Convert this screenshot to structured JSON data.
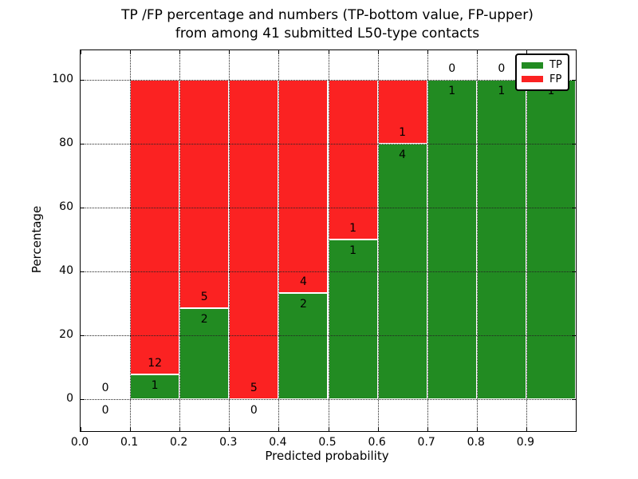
{
  "title": {
    "line1": "TP /FP percentage and numbers (TP-bottom value, FP-upper)",
    "line2": "from among 41 submitted L50-type contacts"
  },
  "chart_data": {
    "type": "bar",
    "stacked": true,
    "title": "TP /FP percentage and numbers (TP-bottom value, FP-upper)\nfrom among 41 submitted L50-type contacts",
    "xlabel": "Predicted probability",
    "ylabel": "Percentage",
    "xtick_labels": [
      "0.0",
      "0.1",
      "0.2",
      "0.3",
      "0.4",
      "0.5",
      "0.6",
      "0.7",
      "0.8",
      "0.9"
    ],
    "ytick_values": [
      0,
      20,
      40,
      60,
      80,
      100
    ],
    "ytick_labels": [
      "0",
      "20",
      "40",
      "60",
      "80",
      "100"
    ],
    "xlim": [
      0.0,
      1.0
    ],
    "ylim": [
      -10,
      109
    ],
    "grid": {
      "visible": true,
      "style": "dotted",
      "on_top": true
    },
    "legend": {
      "position": "upper right",
      "items": [
        {
          "label": "TP",
          "color": "#228b22"
        },
        {
          "label": "FP",
          "color": "#fb2222"
        }
      ]
    },
    "colors": {
      "tp": "#228b22",
      "fp": "#fb2222"
    },
    "total_contacts": 41,
    "bins": [
      {
        "range": "0.0-0.1",
        "tp": 0,
        "fp": 0,
        "tp_pct": 0,
        "fp_pct": 0
      },
      {
        "range": "0.1-0.2",
        "tp": 1,
        "fp": 12,
        "tp_pct": 7.7,
        "fp_pct": 92.3
      },
      {
        "range": "0.2-0.3",
        "tp": 2,
        "fp": 5,
        "tp_pct": 28.6,
        "fp_pct": 71.4
      },
      {
        "range": "0.3-0.4",
        "tp": 0,
        "fp": 5,
        "tp_pct": 0,
        "fp_pct": 100
      },
      {
        "range": "0.4-0.5",
        "tp": 2,
        "fp": 4,
        "tp_pct": 33.3,
        "fp_pct": 66.7
      },
      {
        "range": "0.5-0.6",
        "tp": 1,
        "fp": 1,
        "tp_pct": 50,
        "fp_pct": 50
      },
      {
        "range": "0.6-0.7",
        "tp": 4,
        "fp": 1,
        "tp_pct": 80,
        "fp_pct": 20
      },
      {
        "range": "0.7-0.8",
        "tp": 1,
        "fp": 0,
        "tp_pct": 100,
        "fp_pct": 0
      },
      {
        "range": "0.8-0.9",
        "tp": 1,
        "fp": 0,
        "tp_pct": 100,
        "fp_pct": 0
      },
      {
        "range": "0.9-1.0",
        "tp": 1,
        "fp": 0,
        "tp_pct": 100,
        "fp_pct": 0
      }
    ]
  }
}
